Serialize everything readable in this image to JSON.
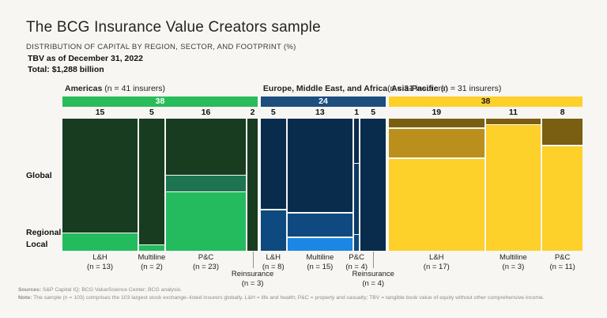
{
  "page": {
    "title": "The BCG Insurance Value Creators sample",
    "subtitle": "DISTRIBUTION OF CAPITAL BY REGION, SECTOR, AND FOOTPRINT (%)",
    "tbv_line": "TBV as of December 31, 2022",
    "total_line": "Total: $1,288 billion"
  },
  "footprint_axis": {
    "labels": [
      "Global",
      "Regional",
      "Local"
    ]
  },
  "footnotes": {
    "sources_label": "Sources:",
    "sources_text": " S&P Capital IQ; BCG ValueScience Center; BCG analysis.",
    "note_label": "Note:",
    "note_text": " The sample (n = 103) comprises the 103 largest stock exchange–listed insurers globally. L&H = life and health; P&C = property and casualty; TBV = tangible book value of equity without other comprehensive income."
  },
  "chart_data": {
    "type": "marimekko",
    "title": "Distribution of capital by region, sector, and footprint (%)",
    "units": "% of total TBV ($1,288 billion)",
    "column_width_unit": "percent of total capital",
    "segment_unit": "percent of column height (estimated from chart)",
    "regions": [
      {
        "name": "Americas",
        "n_label": "(n = 41 insurers)",
        "share": 38,
        "bar_color": "#29bc5a",
        "bar_text_color": "#ffffff",
        "columns": [
          {
            "sector": "L&H",
            "n_label": "(n = 13)",
            "width": 15,
            "segments": [
              {
                "footprint": "Global",
                "pct": 87,
                "color": "#173c20"
              },
              {
                "footprint": "Local",
                "pct": 13,
                "color": "#24bb5f"
              }
            ]
          },
          {
            "sector": "Multiline",
            "n_label": "(n = 2)",
            "width": 5,
            "segments": [
              {
                "footprint": "Global",
                "pct": 96,
                "color": "#173c20"
              },
              {
                "footprint": "Local",
                "pct": 4,
                "color": "#24bb5f"
              }
            ]
          },
          {
            "sector": "P&C",
            "n_label": "(n = 23)",
            "width": 16,
            "segments": [
              {
                "footprint": "Global",
                "pct": 43,
                "color": "#173c20"
              },
              {
                "footprint": "Regional",
                "pct": 12,
                "color": "#1e7451"
              },
              {
                "footprint": "Local",
                "pct": 45,
                "color": "#24bb5f"
              }
            ]
          },
          {
            "sector": "Reinsurance",
            "n_label": "(n = 3)",
            "width": 2,
            "segments": [
              {
                "footprint": "Global",
                "pct": 100,
                "color": "#173c20"
              }
            ]
          }
        ]
      },
      {
        "name": "Europe, Middle East, and Africa",
        "n_label": "(n = 31 insurers)",
        "share": 24,
        "bar_color": "#1d4e7e",
        "bar_text_color": "#ffffff",
        "columns": [
          {
            "sector": "L&H",
            "n_label": "(n = 8)",
            "width": 5,
            "segments": [
              {
                "footprint": "Global",
                "pct": 69,
                "color": "#092c4d"
              },
              {
                "footprint": "Regional",
                "pct": 31,
                "color": "#0e4a80"
              }
            ]
          },
          {
            "sector": "Multiline",
            "n_label": "(n = 15)",
            "width": 13,
            "segments": [
              {
                "footprint": "Global",
                "pct": 72,
                "color": "#092c4d"
              },
              {
                "footprint": "Regional",
                "pct": 18,
                "color": "#0e4a80"
              },
              {
                "footprint": "Local",
                "pct": 10,
                "color": "#1b86e3"
              }
            ]
          },
          {
            "sector": "P&C",
            "n_label": "(n = 4)",
            "width": 1,
            "segments": [
              {
                "footprint": "Global",
                "pct": 34,
                "color": "#092c4d"
              },
              {
                "footprint": "Regional",
                "pct": 54,
                "color": "#0d3a63"
              },
              {
                "footprint": "Local",
                "pct": 12,
                "color": "#0e4a80"
              }
            ]
          },
          {
            "sector": "Reinsurance",
            "n_label": "(n = 4)",
            "width": 5,
            "segments": [
              {
                "footprint": "Global",
                "pct": 100,
                "color": "#092c4d"
              }
            ]
          }
        ]
      },
      {
        "name": "Asia-Pacific",
        "n_label": "(n = 31 insurers)",
        "share": 38,
        "bar_color": "#fdd02a",
        "bar_text_color": "#1a1a1a",
        "columns": [
          {
            "sector": "L&H",
            "n_label": "(n = 17)",
            "width": 19,
            "segments": [
              {
                "footprint": "Global",
                "pct": 7,
                "color": "#7a5f12"
              },
              {
                "footprint": "Regional",
                "pct": 22,
                "color": "#bb8f1c"
              },
              {
                "footprint": "Local",
                "pct": 71,
                "color": "#fdd02a"
              }
            ]
          },
          {
            "sector": "Multiline",
            "n_label": "(n = 3)",
            "width": 11,
            "segments": [
              {
                "footprint": "Global",
                "pct": 4,
                "color": "#7a5f12"
              },
              {
                "footprint": "Local",
                "pct": 96,
                "color": "#fdd02a"
              }
            ]
          },
          {
            "sector": "P&C",
            "n_label": "(n = 11)",
            "width": 8,
            "segments": [
              {
                "footprint": "Global",
                "pct": 20,
                "color": "#7a5f12"
              },
              {
                "footprint": "Local",
                "pct": 80,
                "color": "#fdd02a"
              }
            ]
          }
        ]
      }
    ]
  }
}
